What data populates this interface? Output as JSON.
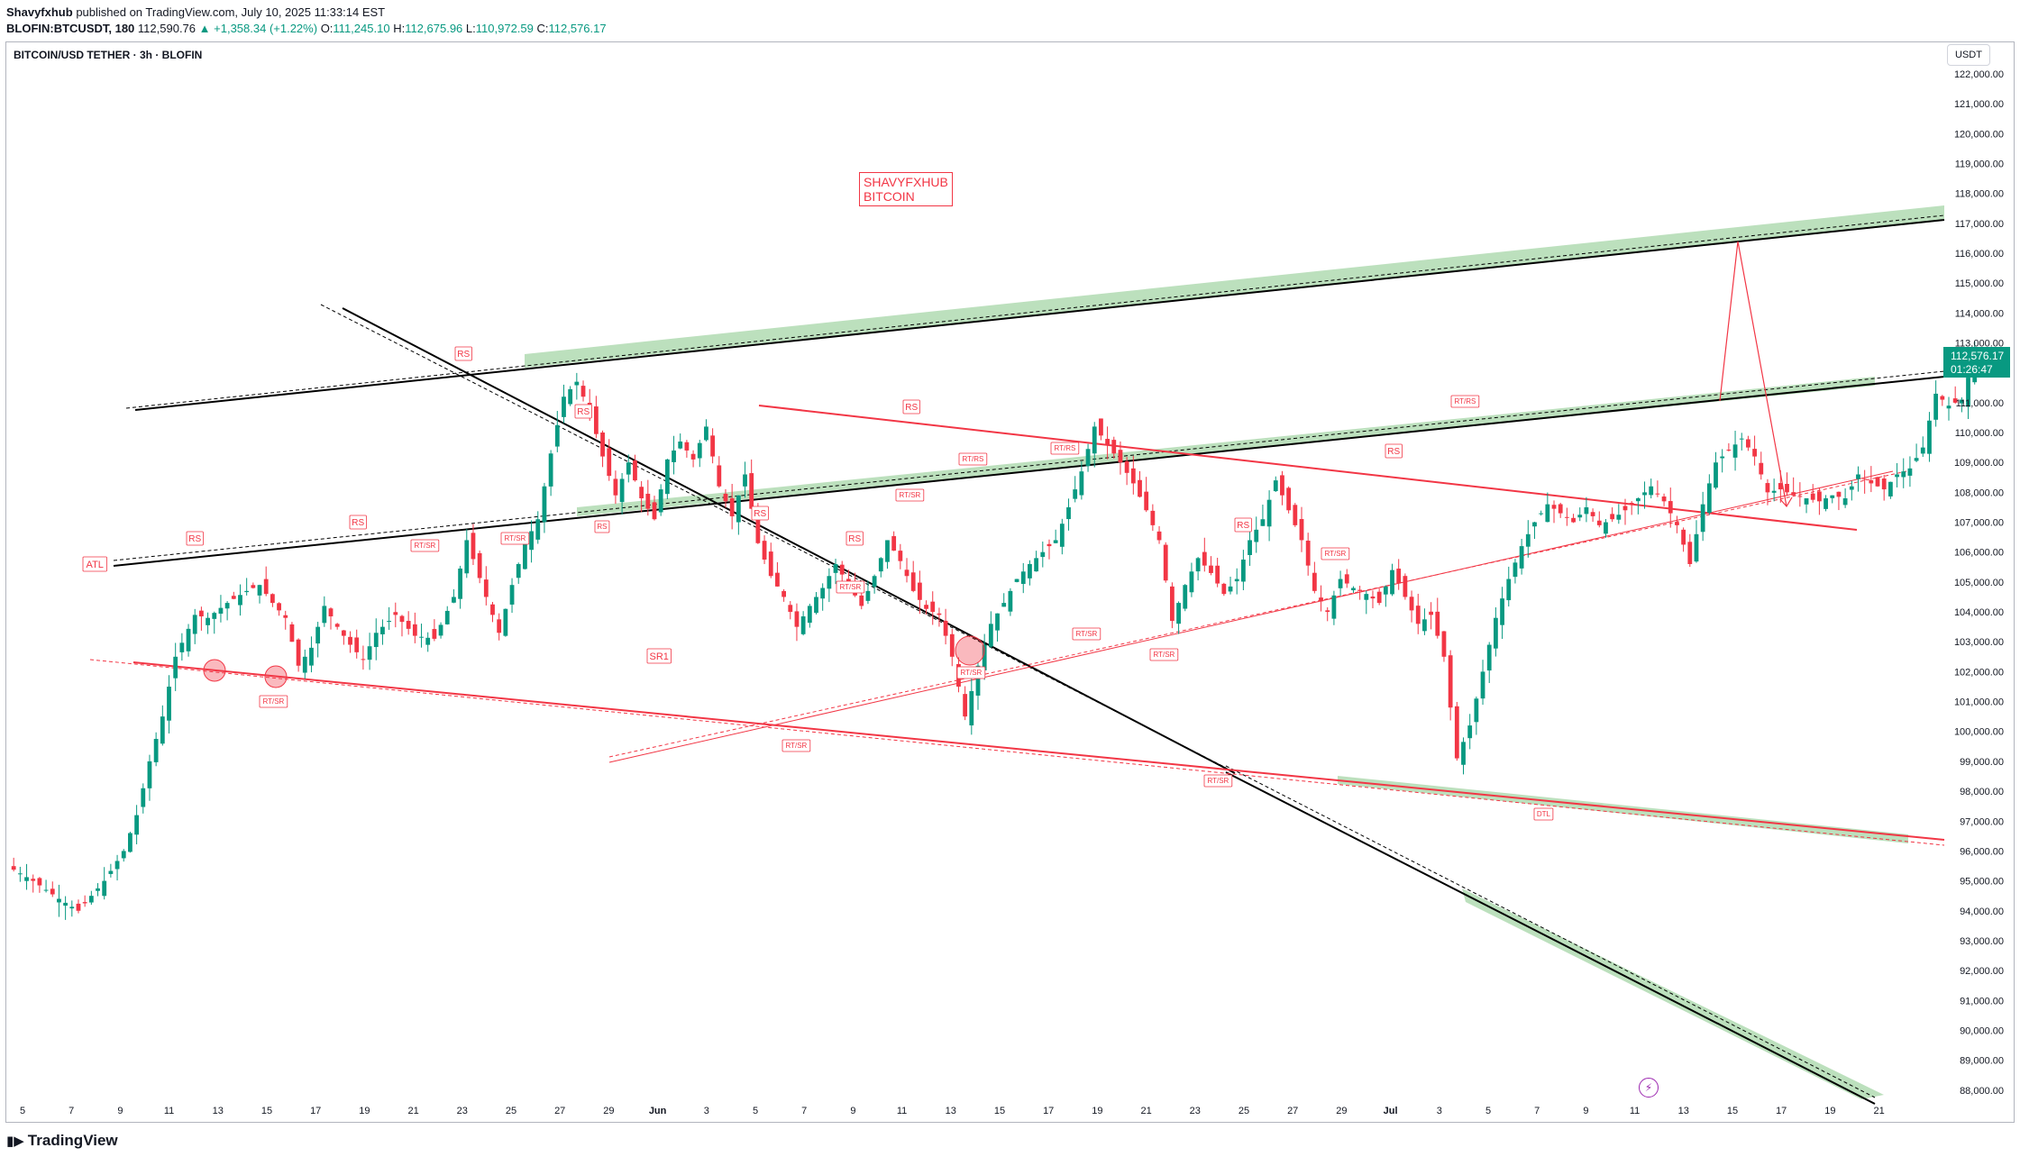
{
  "header": {
    "author": "Shavyfxhub",
    "published_text": "published on TradingView.com, July 10, 2025 11:33:14 EST",
    "symbol": "BLOFIN:BTCUSDT, 180",
    "last": "112,590.76",
    "change": "▲ +1,358.34 (+1.22%)",
    "o_label": "O:",
    "o": "111,245.10",
    "h_label": "H:",
    "h": "112,675.96",
    "l_label": "L:",
    "l": "110,972.59",
    "c_label": "C:",
    "c": "112,576.17"
  },
  "pane": {
    "title": "BITCOIN/USD TETHER · 3h · BLOFIN",
    "currency_button": "USDT"
  },
  "price_badge": {
    "price": "112,576.17",
    "countdown": "01:26:47",
    "color": "#089981"
  },
  "watermark": {
    "line1": "SHAVYFXHUB",
    "line2": "BITCOIN"
  },
  "footer": {
    "logo_text": "TradingView"
  },
  "colors": {
    "up": "#089981",
    "down": "#f23645",
    "trendline": "#000000",
    "zone": "#a5d6a7",
    "label": "#f23645"
  },
  "chart_data": {
    "type": "candlestick",
    "ylim": [
      87500,
      122500
    ],
    "y_ticks": [
      "88,000.00",
      "89,000.00",
      "90,000.00",
      "91,000.00",
      "92,000.00",
      "93,000.00",
      "94,000.00",
      "95,000.00",
      "96,000.00",
      "97,000.00",
      "98,000.00",
      "99,000.00",
      "100,000.00",
      "101,000.00",
      "102,000.00",
      "103,000.00",
      "104,000.00",
      "105,000.00",
      "106,000.00",
      "107,000.00",
      "108,000.00",
      "109,000.00",
      "110,000.00",
      "111,000.00",
      "112,000.00",
      "113,000.00",
      "114,000.00",
      "115,000.00",
      "116,000.00",
      "117,000.00",
      "118,000.00",
      "119,000.00",
      "120,000.00",
      "121,000.00",
      "122,000.00"
    ],
    "x_ticks": [
      "5",
      "7",
      "9",
      "11",
      "13",
      "15",
      "17",
      "19",
      "21",
      "23",
      "25",
      "27",
      "29",
      "Jun",
      "3",
      "5",
      "7",
      "9",
      "11",
      "13",
      "15",
      "17",
      "19",
      "21",
      "23",
      "25",
      "27",
      "29",
      "Jul",
      "3",
      "5",
      "7",
      "9",
      "11",
      "13",
      "15",
      "17",
      "19",
      "21"
    ],
    "price_path": [
      [
        0,
        95500
      ],
      [
        4,
        95000
      ],
      [
        8,
        94400
      ],
      [
        11,
        94000
      ],
      [
        15,
        95000
      ],
      [
        18,
        96000
      ],
      [
        20,
        97200
      ],
      [
        22,
        99000
      ],
      [
        24,
        100500
      ],
      [
        26,
        102500
      ],
      [
        29,
        103900
      ],
      [
        31,
        103800
      ],
      [
        34,
        104300
      ],
      [
        37,
        104700
      ],
      [
        39,
        104900
      ],
      [
        41,
        104300
      ],
      [
        43,
        103800
      ],
      [
        45,
        102200
      ],
      [
        47,
        102800
      ],
      [
        49,
        104200
      ],
      [
        51,
        103500
      ],
      [
        53,
        102900
      ],
      [
        55,
        102400
      ],
      [
        57,
        103300
      ],
      [
        60,
        103900
      ],
      [
        63,
        103200
      ],
      [
        66,
        103100
      ],
      [
        69,
        104500
      ],
      [
        71,
        106400
      ],
      [
        74,
        104500
      ],
      [
        76,
        103300
      ],
      [
        78,
        104900
      ],
      [
        80,
        106300
      ],
      [
        82,
        107100
      ],
      [
        84,
        109300
      ],
      [
        86,
        111200
      ],
      [
        88,
        111700
      ],
      [
        90,
        110700
      ],
      [
        92,
        109200
      ],
      [
        94,
        107900
      ],
      [
        96,
        109000
      ],
      [
        98,
        107800
      ],
      [
        100,
        107100
      ],
      [
        102,
        109100
      ],
      [
        104,
        109700
      ],
      [
        106,
        109100
      ],
      [
        108,
        110200
      ],
      [
        110,
        108200
      ],
      [
        112,
        107200
      ],
      [
        114,
        108600
      ],
      [
        116,
        106300
      ],
      [
        118,
        105200
      ],
      [
        120,
        104500
      ],
      [
        122,
        103500
      ],
      [
        124,
        104200
      ],
      [
        126,
        104800
      ],
      [
        128,
        105600
      ],
      [
        130,
        104900
      ],
      [
        132,
        104200
      ],
      [
        134,
        105200
      ],
      [
        136,
        106400
      ],
      [
        138,
        105700
      ],
      [
        140,
        104700
      ],
      [
        142,
        104100
      ],
      [
        144,
        103900
      ],
      [
        146,
        102500
      ],
      [
        148,
        100500
      ],
      [
        150,
        102200
      ],
      [
        152,
        103600
      ],
      [
        154,
        104300
      ],
      [
        156,
        105100
      ],
      [
        158,
        105600
      ],
      [
        160,
        106000
      ],
      [
        162,
        106400
      ],
      [
        164,
        107500
      ],
      [
        166,
        108700
      ],
      [
        168,
        110200
      ],
      [
        170,
        109600
      ],
      [
        172,
        109000
      ],
      [
        174,
        108300
      ],
      [
        176,
        107400
      ],
      [
        178,
        106400
      ],
      [
        180,
        103700
      ],
      [
        182,
        104900
      ],
      [
        184,
        105800
      ],
      [
        186,
        105300
      ],
      [
        188,
        104600
      ],
      [
        190,
        105100
      ],
      [
        192,
        106400
      ],
      [
        194,
        107100
      ],
      [
        196,
        108400
      ],
      [
        198,
        107400
      ],
      [
        200,
        106400
      ],
      [
        202,
        104700
      ],
      [
        204,
        104000
      ],
      [
        206,
        105100
      ],
      [
        208,
        104800
      ],
      [
        210,
        104600
      ],
      [
        212,
        104300
      ],
      [
        214,
        105400
      ],
      [
        216,
        104500
      ],
      [
        218,
        103600
      ],
      [
        220,
        103900
      ],
      [
        222,
        102500
      ],
      [
        224,
        99100
      ],
      [
        226,
        100200
      ],
      [
        228,
        102000
      ],
      [
        230,
        103800
      ],
      [
        232,
        105100
      ],
      [
        234,
        106200
      ],
      [
        236,
        107000
      ],
      [
        238,
        107600
      ],
      [
        240,
        107300
      ],
      [
        242,
        107000
      ],
      [
        244,
        107500
      ],
      [
        246,
        106900
      ],
      [
        248,
        107100
      ],
      [
        250,
        107400
      ],
      [
        252,
        107800
      ],
      [
        254,
        108200
      ],
      [
        256,
        107700
      ],
      [
        258,
        106900
      ],
      [
        260,
        105600
      ],
      [
        262,
        107600
      ],
      [
        264,
        109000
      ],
      [
        266,
        109400
      ],
      [
        268,
        109800
      ],
      [
        270,
        109200
      ],
      [
        272,
        108000
      ],
      [
        274,
        108100
      ],
      [
        276,
        107900
      ],
      [
        278,
        107800
      ],
      [
        280,
        107700
      ],
      [
        282,
        107900
      ],
      [
        284,
        107800
      ],
      [
        286,
        108600
      ],
      [
        288,
        108300
      ],
      [
        290,
        108100
      ],
      [
        292,
        108600
      ],
      [
        294,
        108800
      ],
      [
        296,
        109500
      ],
      [
        298,
        111300
      ],
      [
        300,
        110900
      ],
      [
        302,
        111100
      ],
      [
        304,
        112576
      ]
    ]
  },
  "labels": {
    "atl": "ATL",
    "rs": "RS",
    "rt_sr": "RT/SR",
    "rt_rs": "RT/RS",
    "sr1": "SR1",
    "dtl": "DTL"
  }
}
